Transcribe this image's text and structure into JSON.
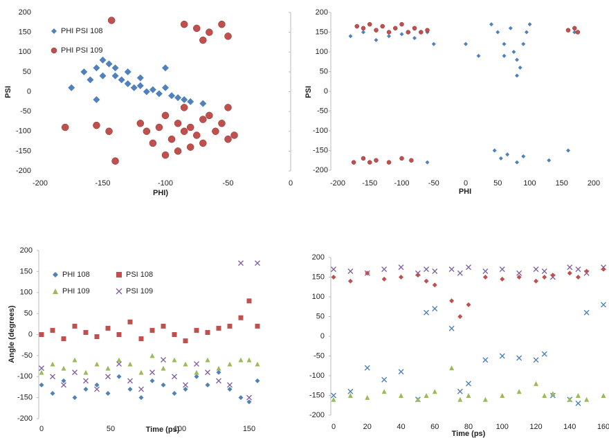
{
  "chart_data": [
    {
      "type": "scatter",
      "xlabel": "PHI)",
      "ylabel": "PSI",
      "xlim": [
        -200,
        0
      ],
      "ylim": [
        -200,
        200
      ],
      "xticks": [
        -200,
        -150,
        -100,
        -50,
        0
      ],
      "yticks": [
        -200,
        -150,
        -100,
        -50,
        0,
        50,
        100,
        150,
        200
      ],
      "series": [
        {
          "name": "PHI PSI 108",
          "color": "#4f81bd",
          "marker": "diamond",
          "x": [
            -165,
            -155,
            -150,
            -145,
            -140,
            -135,
            -130,
            -125,
            -120,
            -115,
            -110,
            -105,
            -100,
            -95,
            -90,
            -85,
            -80,
            -70,
            -160,
            -150,
            -140,
            -130,
            -120,
            -100,
            -175,
            -155
          ],
          "values": [
            50,
            60,
            80,
            70,
            40,
            30,
            20,
            10,
            15,
            0,
            5,
            -5,
            10,
            -10,
            -15,
            -20,
            -25,
            -30,
            30,
            40,
            60,
            50,
            35,
            60,
            10,
            -20
          ]
        },
        {
          "name": "PHI PSI 109",
          "color": "#c0504d",
          "marker": "circle",
          "x": [
            -90,
            -85,
            -80,
            -75,
            -70,
            -95,
            -100,
            -105,
            -110,
            -115,
            -120,
            -90,
            -80,
            -70,
            -60,
            -55,
            -50,
            -65,
            -85,
            -100,
            -140,
            -180,
            -155,
            -145,
            -45,
            -50,
            -143,
            -85,
            -75,
            -65,
            -55,
            -50,
            -70
          ],
          "values": [
            -80,
            -100,
            -90,
            -110,
            -70,
            -120,
            -60,
            -90,
            -130,
            -100,
            -80,
            -150,
            -140,
            -130,
            -100,
            -80,
            -120,
            -60,
            -40,
            -160,
            -175,
            -90,
            -85,
            -100,
            -110,
            -40,
            180,
            170,
            160,
            150,
            170,
            140,
            130
          ]
        }
      ]
    },
    {
      "type": "scatter",
      "xlabel": "PHI",
      "ylabel": "PSI",
      "xlim": [
        -200,
        200
      ],
      "ylim": [
        -200,
        200
      ],
      "xticks": [
        -200,
        -150,
        -100,
        -50,
        0,
        50,
        100,
        150,
        200
      ],
      "yticks": [
        -200,
        -150,
        -100,
        -50,
        0,
        50,
        100,
        150,
        200
      ],
      "series": [
        {
          "color": "#4f81bd",
          "marker": "diamond",
          "x": [
            -180,
            -160,
            -140,
            -120,
            -100,
            -80,
            -60,
            -50,
            40,
            50,
            60,
            70,
            75,
            80,
            85,
            90,
            95,
            100,
            80,
            60,
            20,
            0,
            45,
            55,
            65,
            80,
            90,
            130,
            160,
            -60,
            170
          ],
          "values": [
            140,
            150,
            130,
            140,
            145,
            135,
            150,
            120,
            170,
            150,
            120,
            160,
            100,
            80,
            60,
            120,
            150,
            170,
            40,
            90,
            90,
            120,
            -150,
            -170,
            -160,
            -180,
            -165,
            -175,
            -150,
            -180,
            150
          ]
        },
        {
          "color": "#c0504d",
          "marker": "circle",
          "x": [
            -170,
            -160,
            -150,
            -140,
            -130,
            -120,
            -110,
            -100,
            -90,
            -80,
            -70,
            -60,
            170,
            175,
            160,
            -175,
            -160,
            -150,
            -140,
            -120,
            -100,
            -85
          ],
          "values": [
            165,
            160,
            170,
            155,
            165,
            150,
            160,
            170,
            150,
            160,
            150,
            155,
            160,
            150,
            155,
            -180,
            -170,
            -180,
            -175,
            -180,
            -170,
            -175
          ]
        }
      ]
    },
    {
      "type": "scatter",
      "xlabel": "Time (ps)",
      "ylabel": "Angle (degrees)",
      "xlim": [
        0,
        160
      ],
      "ylim": [
        -200,
        200
      ],
      "xticks": [
        0,
        50,
        100,
        150
      ],
      "yticks": [
        -200,
        -150,
        -100,
        -50,
        0,
        50,
        100,
        150,
        200
      ],
      "series": [
        {
          "name": "PHI 108",
          "color": "#4f81bd",
          "marker": "diamond",
          "x": [
            0,
            8,
            16,
            24,
            32,
            40,
            48,
            56,
            64,
            72,
            80,
            88,
            96,
            104,
            112,
            120,
            128,
            136,
            144,
            150,
            156
          ],
          "values": [
            -120,
            -140,
            -110,
            -150,
            -130,
            -120,
            -140,
            -100,
            -130,
            -150,
            -110,
            -120,
            -140,
            -130,
            -100,
            -120,
            -90,
            -130,
            -150,
            -160,
            -110
          ]
        },
        {
          "name": "PSI 108",
          "color": "#c0504d",
          "marker": "square",
          "x": [
            0,
            8,
            16,
            24,
            32,
            40,
            48,
            56,
            64,
            72,
            80,
            88,
            96,
            104,
            112,
            120,
            128,
            136,
            144,
            150,
            156
          ],
          "values": [
            0,
            10,
            -10,
            20,
            5,
            -5,
            15,
            0,
            30,
            -10,
            10,
            20,
            0,
            -15,
            10,
            5,
            15,
            20,
            40,
            80,
            20
          ]
        },
        {
          "name": "PHI 109",
          "color": "#9bbb59",
          "marker": "triangle",
          "x": [
            0,
            8,
            16,
            24,
            32,
            40,
            48,
            56,
            64,
            72,
            80,
            88,
            96,
            104,
            112,
            120,
            128,
            136,
            144,
            150,
            156
          ],
          "values": [
            -90,
            -70,
            -80,
            -60,
            -90,
            -70,
            -80,
            -60,
            -70,
            -90,
            -50,
            -80,
            -60,
            -70,
            -90,
            -60,
            -80,
            -70,
            -60,
            -60,
            -70
          ]
        },
        {
          "name": "PSI 109",
          "color": "#8064a2",
          "marker": "x",
          "x": [
            0,
            8,
            16,
            24,
            32,
            40,
            48,
            56,
            64,
            72,
            80,
            88,
            96,
            104,
            112,
            120,
            128,
            136,
            144,
            150,
            156
          ],
          "values": [
            -80,
            -100,
            -120,
            -90,
            -110,
            -130,
            -100,
            -70,
            -110,
            -130,
            -90,
            -60,
            -100,
            -120,
            -70,
            -90,
            -110,
            -120,
            170,
            -150,
            170
          ]
        }
      ]
    },
    {
      "type": "scatter",
      "xlabel": "Time (ps)",
      "xlim": [
        0,
        160
      ],
      "ylim": [
        -200,
        200
      ],
      "xticks": [
        0,
        20,
        40,
        60,
        80,
        100,
        120,
        140,
        160
      ],
      "yticks": [
        -200,
        -150,
        -100,
        -50,
        0,
        50,
        100,
        150,
        200
      ],
      "series": [
        {
          "color": "#8064a2",
          "marker": "x",
          "x": [
            0,
            10,
            20,
            30,
            40,
            50,
            55,
            60,
            70,
            75,
            80,
            90,
            100,
            110,
            120,
            125,
            130,
            140,
            145,
            150,
            160
          ],
          "values": [
            170,
            165,
            160,
            170,
            175,
            160,
            170,
            165,
            170,
            160,
            175,
            165,
            170,
            160,
            170,
            165,
            150,
            175,
            170,
            160,
            175
          ]
        },
        {
          "color": "#c0504d",
          "marker": "diamond",
          "x": [
            0,
            10,
            20,
            30,
            40,
            50,
            55,
            60,
            70,
            75,
            80,
            90,
            100,
            110,
            120,
            125,
            130,
            140,
            145,
            150,
            160
          ],
          "values": [
            150,
            140,
            160,
            145,
            150,
            155,
            140,
            130,
            90,
            50,
            80,
            150,
            145,
            150,
            140,
            150,
            155,
            160,
            150,
            165,
            170
          ]
        },
        {
          "color": "#4f81bd",
          "marker": "x",
          "x": [
            0,
            10,
            20,
            30,
            40,
            50,
            55,
            60,
            70,
            75,
            80,
            90,
            100,
            110,
            120,
            125,
            130,
            140,
            145,
            150,
            160
          ],
          "values": [
            -150,
            -140,
            -80,
            -110,
            -90,
            -160,
            60,
            70,
            20,
            -140,
            -120,
            -60,
            -50,
            -55,
            -60,
            -45,
            -150,
            -160,
            -170,
            60,
            80
          ]
        },
        {
          "color": "#9bbb59",
          "marker": "triangle",
          "x": [
            0,
            10,
            20,
            30,
            40,
            50,
            55,
            60,
            70,
            75,
            80,
            90,
            100,
            110,
            120,
            125,
            130,
            140,
            145,
            150,
            160
          ],
          "values": [
            -160,
            -150,
            -155,
            -140,
            -150,
            -160,
            -150,
            -140,
            -80,
            -160,
            -150,
            -160,
            -150,
            -140,
            -120,
            -150,
            -145,
            -160,
            -150,
            -160,
            -150
          ]
        }
      ]
    }
  ]
}
